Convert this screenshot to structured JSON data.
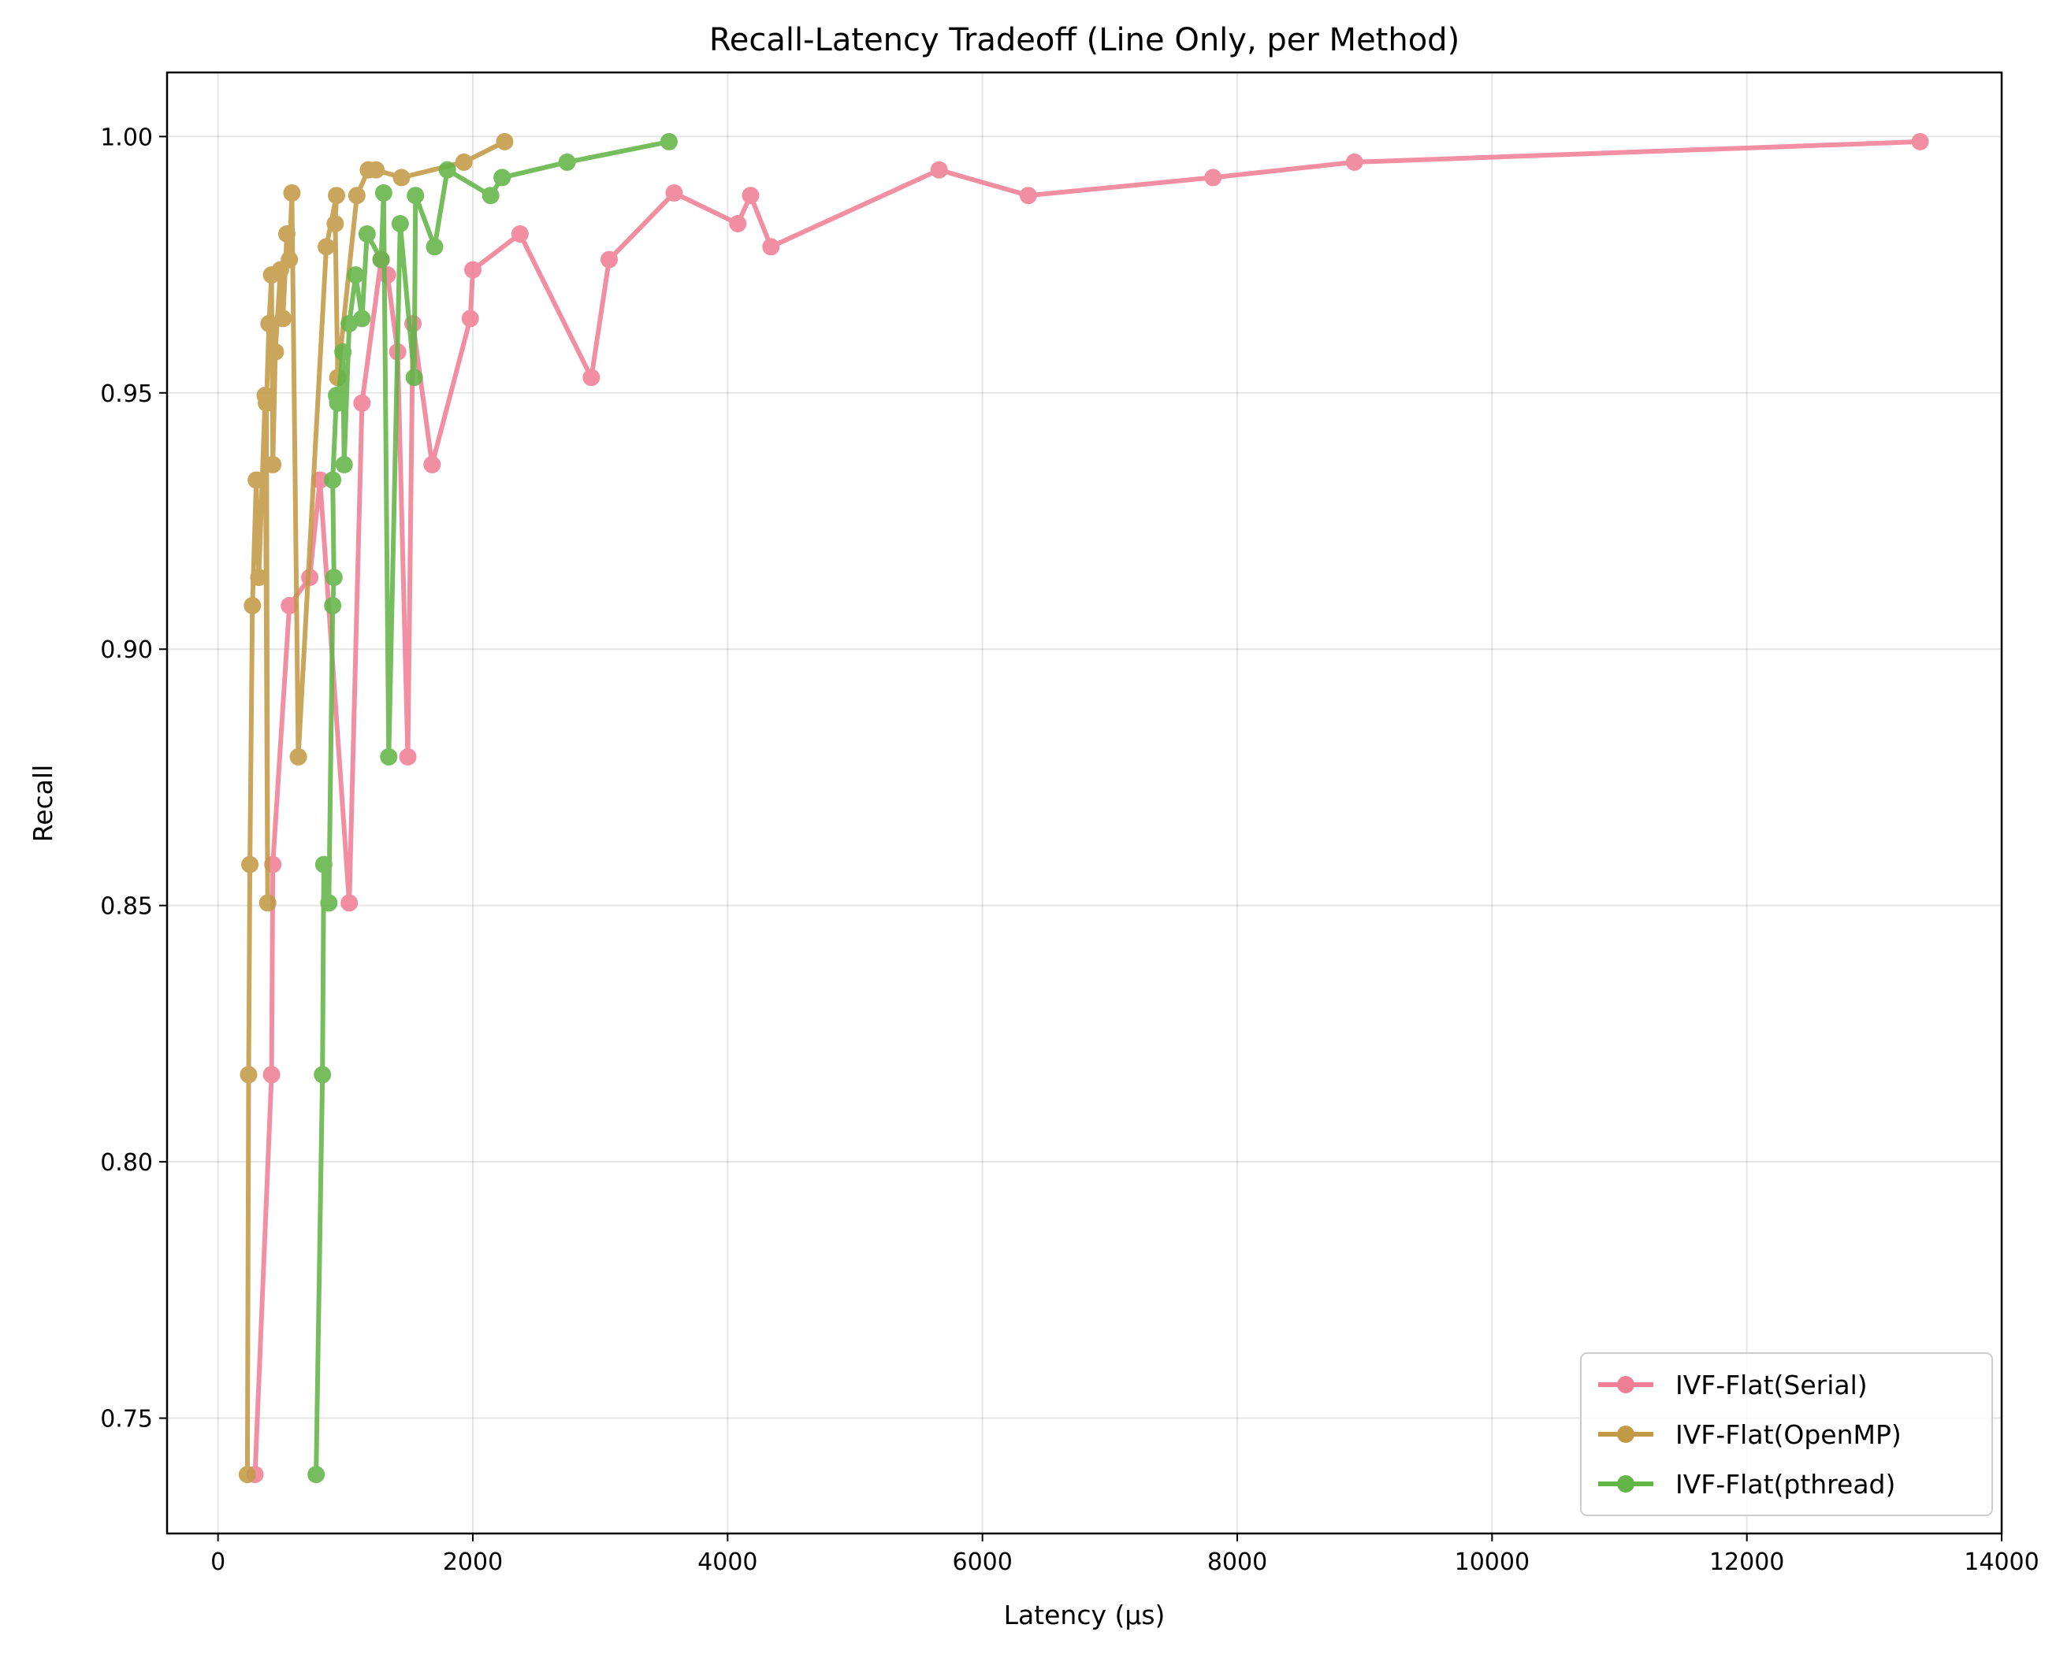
{
  "chart_data": {
    "type": "line",
    "title": "Recall-Latency Tradeoff (Line Only, per Method)",
    "xlabel": "Latency (µs)",
    "ylabel": "Recall",
    "xlim": [
      -400,
      14000
    ],
    "ylim": [
      0.7275,
      1.0125
    ],
    "xticks": [
      0,
      2000,
      4000,
      6000,
      8000,
      10000,
      12000,
      14000
    ],
    "xtick_labels": [
      "0",
      "2000",
      "4000",
      "6000",
      "8000",
      "10000",
      "12000",
      "14000"
    ],
    "yticks": [
      0.75,
      0.8,
      0.85,
      0.9,
      0.95,
      1.0
    ],
    "ytick_labels": [
      "0.75",
      "0.80",
      "0.85",
      "0.90",
      "0.95",
      "1.00"
    ],
    "grid": true,
    "legend_position": "lower-right",
    "series": [
      {
        "name": "IVF-Flat(Serial)",
        "color": "#f07f96",
        "x": [
          290,
          420,
          430,
          560,
          720,
          800,
          1030,
          1130,
          1280,
          1330,
          1410,
          1490,
          1530,
          1680,
          1980,
          2000,
          2370,
          2930,
          3070,
          3580,
          4080,
          4180,
          4340,
          5660,
          6360,
          7810,
          8920,
          13360
        ],
        "y": [
          0.739,
          0.817,
          0.858,
          0.9085,
          0.914,
          0.933,
          0.8505,
          0.948,
          0.976,
          0.973,
          0.958,
          0.879,
          0.9635,
          0.936,
          0.9645,
          0.974,
          0.981,
          0.953,
          0.976,
          0.989,
          0.983,
          0.9885,
          0.9785,
          0.9935,
          0.9885,
          0.992,
          0.995,
          0.999
        ]
      },
      {
        "name": "IVF-Flat(OpenMP)",
        "color": "#c29a46",
        "x": [
          230,
          240,
          250,
          270,
          300,
          320,
          370,
          390,
          380,
          400,
          420,
          430,
          450,
          490,
          510,
          540,
          560,
          580,
          630,
          850,
          930,
          920,
          940,
          1090,
          1180,
          1240,
          1440,
          1930,
          2250
        ],
        "y": [
          0.739,
          0.817,
          0.858,
          0.9085,
          0.933,
          0.914,
          0.9495,
          0.8505,
          0.948,
          0.9635,
          0.973,
          0.936,
          0.958,
          0.974,
          0.9645,
          0.981,
          0.976,
          0.989,
          0.879,
          0.9785,
          0.9885,
          0.983,
          0.953,
          0.9885,
          0.9935,
          0.9935,
          0.992,
          0.995,
          0.999
        ]
      },
      {
        "name": "IVF-Flat(pthread)",
        "color": "#62b547",
        "x": [
          770,
          820,
          830,
          870,
          900,
          910,
          900,
          930,
          940,
          980,
          990,
          1030,
          1080,
          1130,
          1170,
          1280,
          1300,
          1340,
          1430,
          1540,
          1550,
          1700,
          1800,
          2140,
          2230,
          2740,
          3540
        ],
        "y": [
          0.739,
          0.817,
          0.858,
          0.8505,
          0.9085,
          0.914,
          0.933,
          0.9495,
          0.948,
          0.958,
          0.936,
          0.9635,
          0.973,
          0.9645,
          0.981,
          0.976,
          0.989,
          0.879,
          0.983,
          0.953,
          0.9885,
          0.9785,
          0.9935,
          0.9885,
          0.992,
          0.995,
          0.999
        ]
      }
    ]
  }
}
